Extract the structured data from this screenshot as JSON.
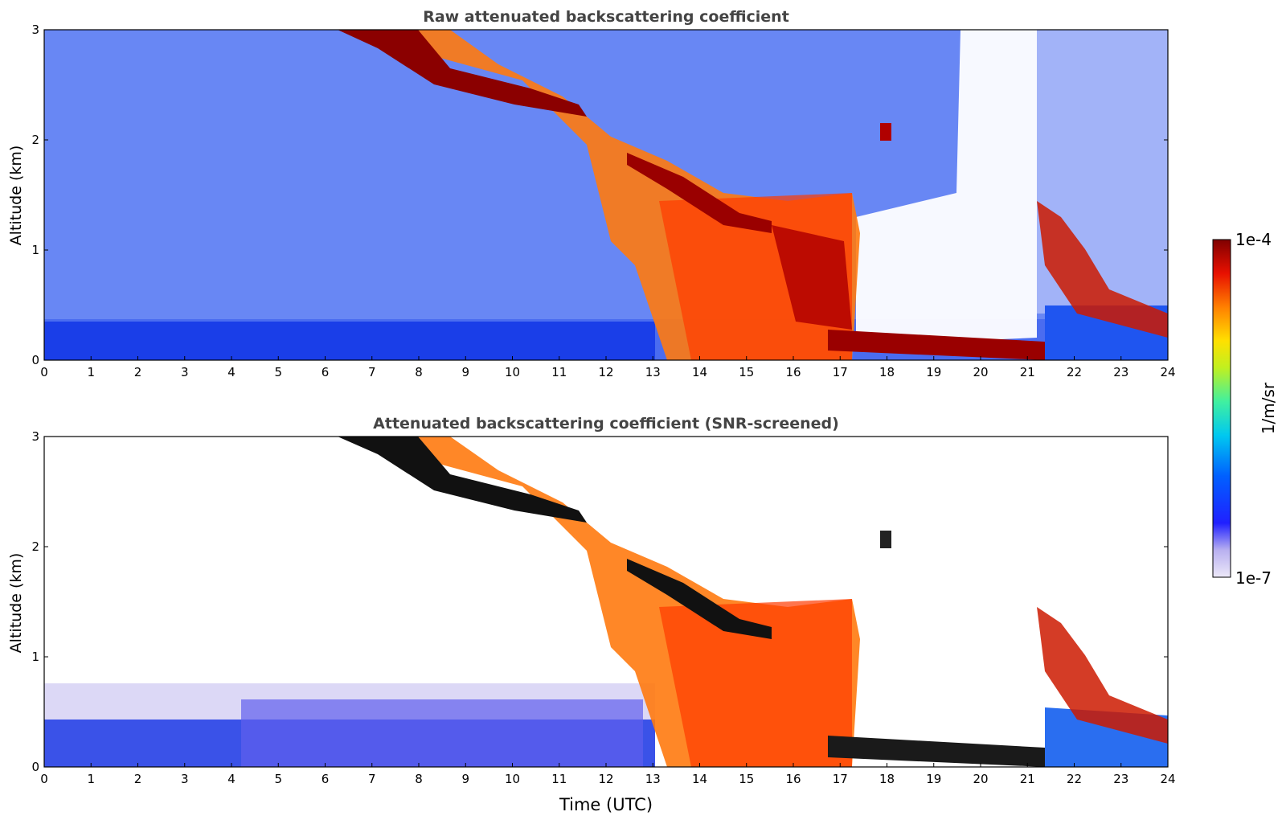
{
  "figure": {
    "colorbar": {
      "label": "1/m/sr",
      "max_label": "1e-4",
      "min_label": "1e-7",
      "scale": "log",
      "range": [
        1e-07,
        0.0001
      ],
      "colormap": "jet-like (light lavender → blue → cyan → green → yellow → orange → red → dark red)"
    }
  },
  "chart_data": [
    {
      "type": "heatmap",
      "title": "Raw attenuated backscattering coefficient",
      "xlabel": "",
      "ylabel": "Altitude (km)",
      "xlim": [
        0,
        24
      ],
      "ylim": [
        0,
        3
      ],
      "x_ticks": [
        "0",
        "1",
        "2",
        "3",
        "4",
        "5",
        "6",
        "7",
        "8",
        "9",
        "10",
        "11",
        "12",
        "13",
        "14",
        "15",
        "16",
        "17",
        "18",
        "19",
        "20",
        "21",
        "22",
        "23",
        "24"
      ],
      "y_ticks": [
        "0",
        "1",
        "2",
        "3"
      ],
      "grid": false,
      "features": {
        "boundary_layer_top_km": 0.28,
        "cloud_layer_descending": [
          [
            6.8,
            3.0
          ],
          [
            8.5,
            2.6
          ],
          [
            10.5,
            2.4
          ],
          [
            12.5,
            1.8
          ],
          [
            14.5,
            1.35
          ],
          [
            17.0,
            1.5
          ]
        ],
        "precipitation_hours": [
          12.2,
          17.3
        ],
        "low_cloud_hours": [
          17.5,
          21.4
        ],
        "low_cloud_altitude_km": 0.15,
        "late_cloud": [
          [
            21.2,
            1.4
          ],
          [
            22.5,
            0.9
          ],
          [
            24.0,
            0.3
          ]
        ]
      }
    },
    {
      "type": "heatmap",
      "title": "Attenuated backscattering coefficient (SNR-screened)",
      "xlabel": "Time (UTC)",
      "ylabel": "Altitude (km)",
      "xlim": [
        0,
        24
      ],
      "ylim": [
        0,
        3
      ],
      "x_ticks": [
        "0",
        "1",
        "2",
        "3",
        "4",
        "5",
        "6",
        "7",
        "8",
        "9",
        "10",
        "11",
        "12",
        "13",
        "14",
        "15",
        "16",
        "17",
        "18",
        "19",
        "20",
        "21",
        "22",
        "23",
        "24"
      ],
      "y_ticks": [
        "0",
        "1",
        "2",
        "3"
      ],
      "grid": false
    }
  ]
}
